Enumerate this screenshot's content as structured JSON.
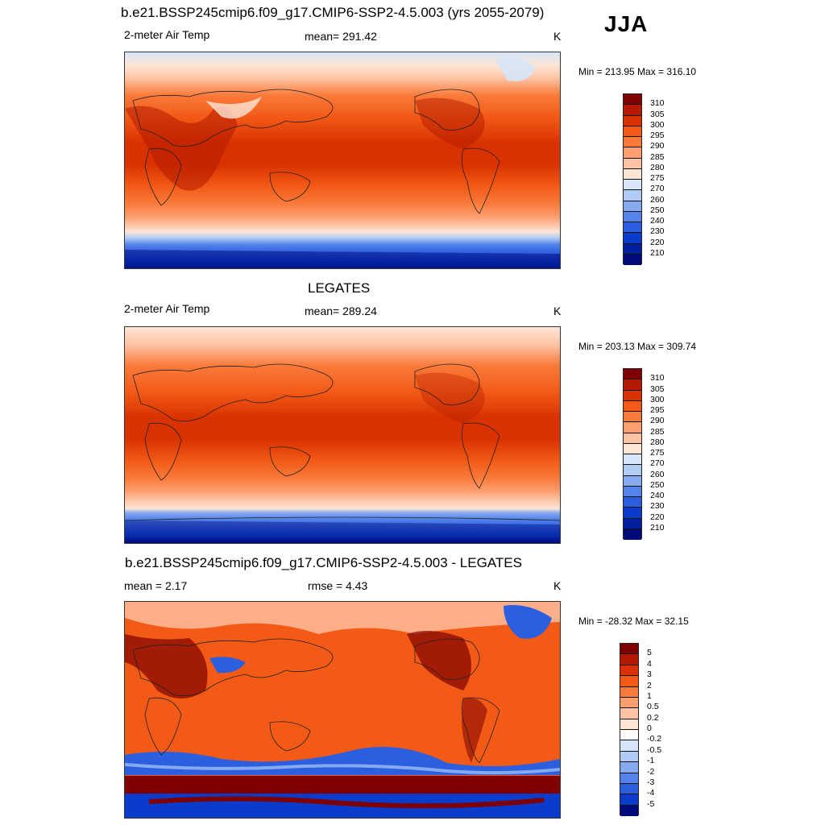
{
  "season": "JJA",
  "units": "K",
  "panels": [
    {
      "title": "b.e21.BSSP245cmip6.f09_g17.CMIP6-SSP2-4.5.003 (yrs 2055-2079)",
      "variable": "2-meter Air Temp",
      "stat": "mean= 291.42",
      "units": "K",
      "minmax": "Min = 213.95 Max = 316.10",
      "colorbar": {
        "labels": [
          "310",
          "305",
          "300",
          "295",
          "290",
          "285",
          "280",
          "275",
          "270",
          "260",
          "250",
          "240",
          "230",
          "220",
          "210"
        ],
        "colors": [
          "#7f0000",
          "#b31a00",
          "#d93200",
          "#f25a16",
          "#fa7a3a",
          "#fd9e6e",
          "#fdc3a4",
          "#fde6d6",
          "#d6e6f8",
          "#b0ccf4",
          "#86aaf0",
          "#5683ea",
          "#2c5ee0",
          "#0a3ccc",
          "#00209e",
          "#000a78"
        ]
      },
      "chart_data": {
        "type": "heatmap",
        "field": "2-meter Air Temp",
        "units": "K",
        "mean": 291.42,
        "min": 213.95,
        "max": 316.1,
        "contour_levels": [
          210,
          220,
          230,
          240,
          250,
          260,
          270,
          275,
          280,
          285,
          290,
          295,
          300,
          305,
          310
        ]
      }
    },
    {
      "title": "LEGATES",
      "variable": "2-meter Air Temp",
      "stat": "mean= 289.24",
      "units": "K",
      "minmax": "Min = 203.13 Max = 309.74",
      "colorbar": {
        "labels": [
          "310",
          "305",
          "300",
          "295",
          "290",
          "285",
          "280",
          "275",
          "270",
          "260",
          "250",
          "240",
          "230",
          "220",
          "210"
        ],
        "colors": [
          "#7f0000",
          "#b31a00",
          "#d93200",
          "#f25a16",
          "#fa7a3a",
          "#fd9e6e",
          "#fdc3a4",
          "#fde6d6",
          "#d6e6f8",
          "#b0ccf4",
          "#86aaf0",
          "#5683ea",
          "#2c5ee0",
          "#0a3ccc",
          "#00209e",
          "#000a78"
        ]
      },
      "chart_data": {
        "type": "heatmap",
        "field": "2-meter Air Temp",
        "units": "K",
        "mean": 289.24,
        "min": 203.13,
        "max": 309.74,
        "contour_levels": [
          210,
          220,
          230,
          240,
          250,
          260,
          270,
          275,
          280,
          285,
          290,
          295,
          300,
          305,
          310
        ]
      }
    },
    {
      "title": "b.e21.BSSP245cmip6.f09_g17.CMIP6-SSP2-4.5.003 - LEGATES",
      "variable": "mean =   2.17",
      "stat": "rmse =   4.43",
      "units": "K",
      "minmax": "Min = -28.32 Max =  32.15",
      "colorbar": {
        "labels": [
          "5",
          "4",
          "3",
          "2",
          "1",
          "0.5",
          "0.2",
          "0",
          "-0.2",
          "-0.5",
          "-1",
          "-2",
          "-3",
          "-4",
          "-5"
        ],
        "colors": [
          "#7f0000",
          "#b31a00",
          "#d93200",
          "#f25a16",
          "#fa7a3a",
          "#fd9e6e",
          "#fdc3a4",
          "#fde6d6",
          "#ffffff",
          "#d6e6f8",
          "#b0ccf4",
          "#86aaf0",
          "#5683ea",
          "#2c5ee0",
          "#0a3ccc",
          "#000a78"
        ]
      },
      "chart_data": {
        "type": "heatmap",
        "field": "difference",
        "units": "K",
        "mean": 2.17,
        "rmse": 4.43,
        "min": -28.32,
        "max": 32.15,
        "contour_levels": [
          -5,
          -4,
          -3,
          -2,
          -1,
          -0.5,
          -0.2,
          0,
          0.2,
          0.5,
          1,
          2,
          3,
          4,
          5
        ]
      }
    }
  ]
}
